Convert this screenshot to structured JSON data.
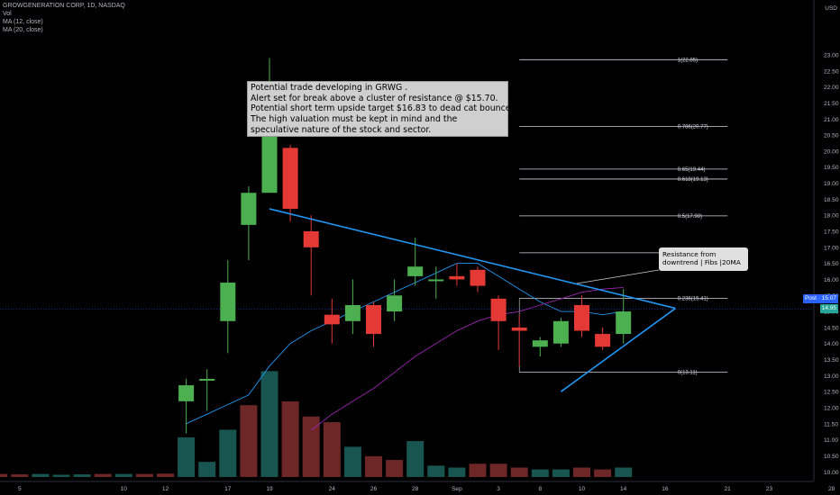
{
  "legend": {
    "title": "GROWGENERATION CORP, 1D, NASDAQ",
    "vol": "Vol",
    "ma12": "MA (12, close)",
    "ma20": "MA (20, close)"
  },
  "note": {
    "lines": [
      "Potential trade developing in GRWG .",
      "Alert set for break above a cluster of resistance @ $15.70.",
      "Potential short term upside target $16.83 to dead cat bounce Fib.",
      "The high valuation must be kept in mind and the",
      "speculative nature of the stock and sector."
    ]
  },
  "callout": {
    "line1": "Resistance from",
    "line2": "downtrend | Fibs |20MA"
  },
  "price_tags": {
    "post": "Post · 15.07",
    "last": "14.95"
  },
  "top_label": "USD",
  "colors": {
    "up": "#4caf50",
    "down": "#e53935",
    "vol_up": "#1b5e5a",
    "vol_down": "#7a2b2b",
    "trend": "#2196f3",
    "ma12": "#2196f3",
    "ma20": "#9c27b0",
    "fib": "#d1d4dc",
    "post_tag": "#2962ff",
    "last_tag": "#26a69a"
  },
  "chart_data": {
    "type": "candlestick",
    "title": "GROWGENERATION CORP, 1D, NASDAQ",
    "y_axis": {
      "unit": "USD",
      "ylim": [
        9.7,
        23.45
      ],
      "ticks": [
        10,
        10.5,
        11,
        11.5,
        12,
        12.5,
        13,
        13.5,
        14,
        14.5,
        15,
        15.5,
        16,
        16.5,
        17,
        17.5,
        18,
        18.5,
        19,
        19.5,
        20,
        20.5,
        21,
        21.5,
        22,
        22.5,
        23
      ]
    },
    "x_axis": {
      "tick_labels": [
        "5",
        "10",
        "12",
        "17",
        "19",
        "24",
        "26",
        "28",
        "Sep",
        "3",
        "8",
        "10",
        "14",
        "16",
        "21",
        "23",
        "28"
      ],
      "tick_index": [
        -4,
        1,
        3,
        6,
        8,
        11,
        13,
        15,
        17,
        19,
        21,
        23,
        25,
        27,
        30,
        32,
        35
      ]
    },
    "candles": [
      {
        "i": 4,
        "o": 12.2,
        "h": 12.9,
        "l": 11.2,
        "c": 12.7
      },
      {
        "i": 5,
        "o": 12.9,
        "h": 13.2,
        "l": 11.9,
        "c": 12.9
      },
      {
        "i": 6,
        "o": 14.7,
        "h": 16.6,
        "l": 13.7,
        "c": 15.9
      },
      {
        "i": 7,
        "o": 17.7,
        "h": 18.9,
        "l": 16.6,
        "c": 18.7
      },
      {
        "i": 8,
        "o": 18.7,
        "h": 22.9,
        "l": 18.7,
        "c": 21.9
      },
      {
        "i": 9,
        "o": 20.1,
        "h": 20.2,
        "l": 17.8,
        "c": 18.2
      },
      {
        "i": 10,
        "o": 17.5,
        "h": 18.0,
        "l": 15.5,
        "c": 17.0
      },
      {
        "i": 11,
        "o": 14.9,
        "h": 15.4,
        "l": 14.0,
        "c": 14.6
      },
      {
        "i": 12,
        "o": 14.7,
        "h": 16.0,
        "l": 14.3,
        "c": 15.2
      },
      {
        "i": 13,
        "o": 15.2,
        "h": 15.3,
        "l": 13.9,
        "c": 14.3
      },
      {
        "i": 14,
        "o": 15.0,
        "h": 16.0,
        "l": 14.7,
        "c": 15.5
      },
      {
        "i": 15,
        "o": 16.1,
        "h": 17.3,
        "l": 15.8,
        "c": 16.4
      },
      {
        "i": 16,
        "o": 16.0,
        "h": 16.4,
        "l": 15.4,
        "c": 16.0
      },
      {
        "i": 17,
        "o": 16.1,
        "h": 16.5,
        "l": 15.8,
        "c": 16.0
      },
      {
        "i": 18,
        "o": 16.3,
        "h": 16.4,
        "l": 15.6,
        "c": 15.8
      },
      {
        "i": 19,
        "o": 15.4,
        "h": 15.5,
        "l": 13.8,
        "c": 14.7
      },
      {
        "i": 20,
        "o": 14.5,
        "h": 14.9,
        "l": 13.3,
        "c": 14.4
      },
      {
        "i": 21,
        "o": 13.9,
        "h": 14.2,
        "l": 13.6,
        "c": 14.1
      },
      {
        "i": 22,
        "o": 14.0,
        "h": 14.8,
        "l": 13.9,
        "c": 14.7
      },
      {
        "i": 23,
        "o": 15.2,
        "h": 15.5,
        "l": 14.2,
        "c": 14.4
      },
      {
        "i": 24,
        "o": 14.3,
        "h": 14.5,
        "l": 13.8,
        "c": 13.9
      },
      {
        "i": 25,
        "o": 14.3,
        "h": 15.7,
        "l": 14.0,
        "c": 15.0
      }
    ],
    "volume": [
      {
        "i": -6,
        "v": 0.9,
        "up": false
      },
      {
        "i": -5,
        "v": 0.8,
        "up": false
      },
      {
        "i": -4,
        "v": 0.7,
        "up": false
      },
      {
        "i": -3,
        "v": 0.8,
        "up": true
      },
      {
        "i": -2,
        "v": 0.6,
        "up": true
      },
      {
        "i": -1,
        "v": 0.7,
        "up": true
      },
      {
        "i": 0,
        "v": 0.8,
        "up": false
      },
      {
        "i": 1,
        "v": 0.8,
        "up": true
      },
      {
        "i": 2,
        "v": 0.8,
        "up": false
      },
      {
        "i": 3,
        "v": 0.9,
        "up": false
      },
      {
        "i": 4,
        "v": 10.5,
        "up": true
      },
      {
        "i": 5,
        "v": 4.0,
        "up": true
      },
      {
        "i": 6,
        "v": 12.5,
        "up": true
      },
      {
        "i": 7,
        "v": 19.0,
        "up": false
      },
      {
        "i": 8,
        "v": 28.0,
        "up": true
      },
      {
        "i": 9,
        "v": 20.0,
        "up": false
      },
      {
        "i": 10,
        "v": 16.0,
        "up": false
      },
      {
        "i": 11,
        "v": 14.5,
        "up": false
      },
      {
        "i": 12,
        "v": 8.0,
        "up": true
      },
      {
        "i": 13,
        "v": 5.5,
        "up": false
      },
      {
        "i": 14,
        "v": 4.5,
        "up": false
      },
      {
        "i": 15,
        "v": 9.5,
        "up": true
      },
      {
        "i": 16,
        "v": 3.0,
        "up": true
      },
      {
        "i": 17,
        "v": 2.5,
        "up": true
      },
      {
        "i": 18,
        "v": 3.5,
        "up": false
      },
      {
        "i": 19,
        "v": 3.5,
        "up": false
      },
      {
        "i": 20,
        "v": 2.5,
        "up": false
      },
      {
        "i": 21,
        "v": 2.0,
        "up": true
      },
      {
        "i": 22,
        "v": 2.0,
        "up": true
      },
      {
        "i": 23,
        "v": 2.5,
        "up": false
      },
      {
        "i": 24,
        "v": 2.0,
        "up": false
      },
      {
        "i": 25,
        "v": 2.5,
        "up": true
      }
    ],
    "ma12": [
      [
        4,
        11.5
      ],
      [
        5,
        11.8
      ],
      [
        6,
        12.1
      ],
      [
        7,
        12.4
      ],
      [
        8,
        13.3
      ],
      [
        9,
        14.0
      ],
      [
        10,
        14.4
      ],
      [
        11,
        14.7
      ],
      [
        12,
        15.0
      ],
      [
        13,
        15.3
      ],
      [
        14,
        15.6
      ],
      [
        15,
        15.9
      ],
      [
        16,
        16.2
      ],
      [
        17,
        16.5
      ],
      [
        18,
        16.5
      ],
      [
        19,
        16.1
      ],
      [
        20,
        15.7
      ],
      [
        21,
        15.3
      ],
      [
        22,
        15.0
      ],
      [
        23,
        15.0
      ],
      [
        24,
        14.9
      ],
      [
        25,
        15.0
      ]
    ],
    "ma20": [
      [
        10,
        11.3
      ],
      [
        11,
        11.8
      ],
      [
        12,
        12.2
      ],
      [
        13,
        12.6
      ],
      [
        14,
        13.1
      ],
      [
        15,
        13.6
      ],
      [
        16,
        14.0
      ],
      [
        17,
        14.4
      ],
      [
        18,
        14.7
      ],
      [
        19,
        14.9
      ],
      [
        20,
        15.0
      ],
      [
        21,
        15.2
      ],
      [
        22,
        15.4
      ],
      [
        23,
        15.6
      ],
      [
        24,
        15.7
      ],
      [
        25,
        15.75
      ]
    ],
    "trendline_upper": [
      [
        8,
        18.2
      ],
      [
        27.5,
        15.1
      ]
    ],
    "trendline_lower": [
      [
        22,
        12.5
      ],
      [
        27.5,
        15.1
      ]
    ],
    "fib_levels": [
      {
        "label": "1(22.85)",
        "value": 22.85
      },
      {
        "label": "0.786(20.77)",
        "value": 20.77
      },
      {
        "label": "0.65(19.44)",
        "value": 19.44
      },
      {
        "label": "0.618(19.13)",
        "value": 19.13
      },
      {
        "label": "0.5(17.98)",
        "value": 17.98
      },
      {
        "label": "0.382(16.83)",
        "value": 16.83
      },
      {
        "label": "0.236(15.41)",
        "value": 15.41
      },
      {
        "label": "0(13.11)",
        "value": 13.11
      }
    ],
    "fib_x_range": [
      20,
      30
    ],
    "current_price_line": 15.07
  }
}
